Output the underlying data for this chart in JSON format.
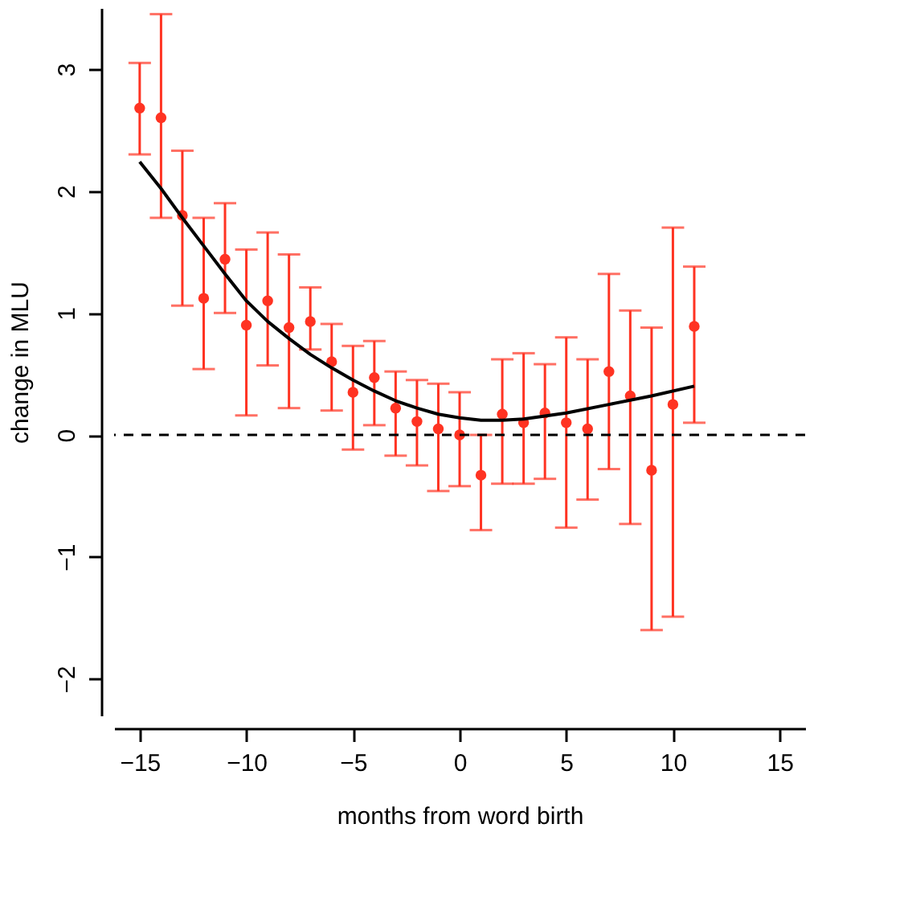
{
  "chart_data": {
    "type": "scatter",
    "xlabel": "months from word birth",
    "ylabel": "change in MLU",
    "xlim": [
      -16.2,
      16.2
    ],
    "xticks": [
      -15,
      -10,
      -5,
      0,
      5,
      10,
      15
    ],
    "ylim": [
      -2.3,
      3.5
    ],
    "yticks": [
      -2,
      -1,
      0,
      1,
      2,
      3
    ],
    "grid": false,
    "series": [
      {
        "color": "#ff3322",
        "marker": "circle",
        "x": [
          -15,
          -14,
          -13,
          -12,
          -11,
          -10,
          -9,
          -8,
          -7,
          -6,
          -5,
          -4,
          -3,
          -2,
          -1,
          0,
          1,
          2,
          3,
          4,
          5,
          6,
          7,
          8,
          9,
          10,
          11
        ],
        "values": [
          2.68,
          2.6,
          1.8,
          1.12,
          1.44,
          0.9,
          1.1,
          0.88,
          0.93,
          0.6,
          0.35,
          0.47,
          0.22,
          0.11,
          0.05,
          0.0,
          -0.33,
          0.17,
          0.1,
          0.18,
          0.1,
          0.05,
          0.52,
          0.32,
          -0.29,
          0.25,
          0.89
        ],
        "errors": [
          [
            2.3,
            3.05
          ],
          [
            1.78,
            3.45
          ],
          [
            1.06,
            2.33
          ],
          [
            0.54,
            1.78
          ],
          [
            1.0,
            1.9
          ],
          [
            0.16,
            1.52
          ],
          [
            0.57,
            1.66
          ],
          [
            0.22,
            1.48
          ],
          [
            0.7,
            1.21
          ],
          [
            0.2,
            0.91
          ],
          [
            -0.12,
            0.73
          ],
          [
            0.08,
            0.77
          ],
          [
            -0.17,
            0.52
          ],
          [
            -0.25,
            0.45
          ],
          [
            -0.46,
            0.42
          ],
          [
            -0.42,
            0.35
          ],
          [
            -0.78,
            0.0
          ],
          [
            -0.4,
            0.62
          ],
          [
            -0.4,
            0.67
          ],
          [
            -0.36,
            0.58
          ],
          [
            -0.76,
            0.8
          ],
          [
            -0.53,
            0.62
          ],
          [
            -0.28,
            1.32
          ],
          [
            -0.73,
            1.02
          ],
          [
            -1.6,
            0.88
          ],
          [
            -1.49,
            1.7
          ],
          [
            0.1,
            1.38
          ]
        ]
      },
      {
        "type": "line",
        "color": "#000000",
        "marker": "none",
        "line_style": "solid",
        "x": [
          -15,
          -14,
          -13,
          -12,
          -11,
          -10,
          -9,
          -8,
          -7,
          -6,
          -5,
          -4,
          -3,
          -2,
          -1,
          0,
          1,
          2,
          3,
          5,
          7,
          9,
          11
        ],
        "values": [
          2.24,
          2.02,
          1.78,
          1.55,
          1.32,
          1.1,
          0.93,
          0.79,
          0.66,
          0.55,
          0.45,
          0.36,
          0.28,
          0.22,
          0.17,
          0.14,
          0.12,
          0.12,
          0.13,
          0.18,
          0.25,
          0.32,
          0.4
        ]
      }
    ],
    "ref_lines": [
      {
        "axis": "y",
        "value": 0,
        "color": "#000000",
        "line_style": "dashed"
      }
    ]
  }
}
